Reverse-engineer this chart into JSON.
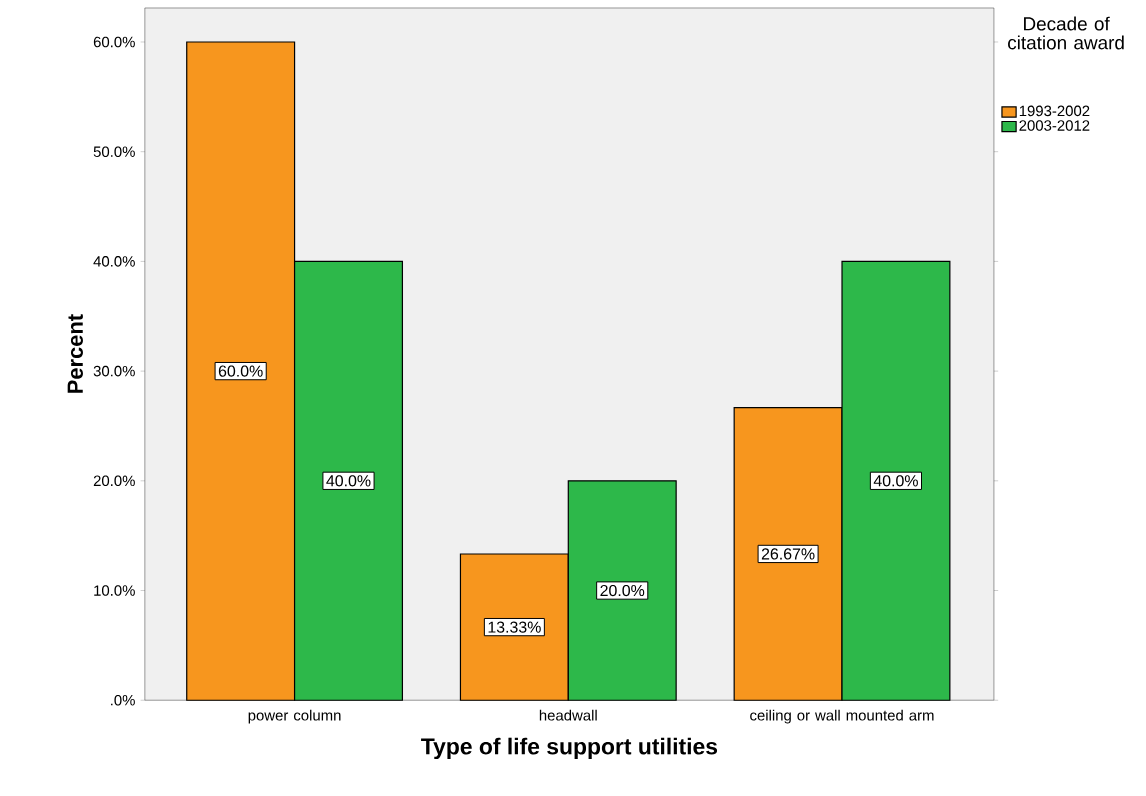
{
  "chart_data": {
    "type": "bar",
    "xlabel": "Type of life support utilities",
    "ylabel": "Percent",
    "legend_title": "Decade of citation award",
    "categories": [
      "power column",
      "headwall",
      "ceiling or wall mounted arm"
    ],
    "series": [
      {
        "name": "1993-2002",
        "color": "#f7961e",
        "values": [
          60,
          13.33,
          26.67
        ],
        "value_labels": [
          "60.0%",
          "13.33%",
          "26.67%"
        ]
      },
      {
        "name": "2003-2012",
        "color": "#2db84a",
        "values": [
          40,
          20,
          40
        ],
        "value_labels": [
          "40.0%",
          "20.0%",
          "40.0%"
        ]
      }
    ],
    "ylim": [
      0,
      63.1
    ],
    "yticks": [
      {
        "value": 0,
        "label": ".0%"
      },
      {
        "value": 10,
        "label": "10.0%"
      },
      {
        "value": 20,
        "label": "20.0%"
      },
      {
        "value": 30,
        "label": "30.0%"
      },
      {
        "value": 40,
        "label": "40.0%"
      },
      {
        "value": 50,
        "label": "50.0%"
      },
      {
        "value": 60,
        "label": "60.0%"
      }
    ],
    "legend": "right"
  }
}
